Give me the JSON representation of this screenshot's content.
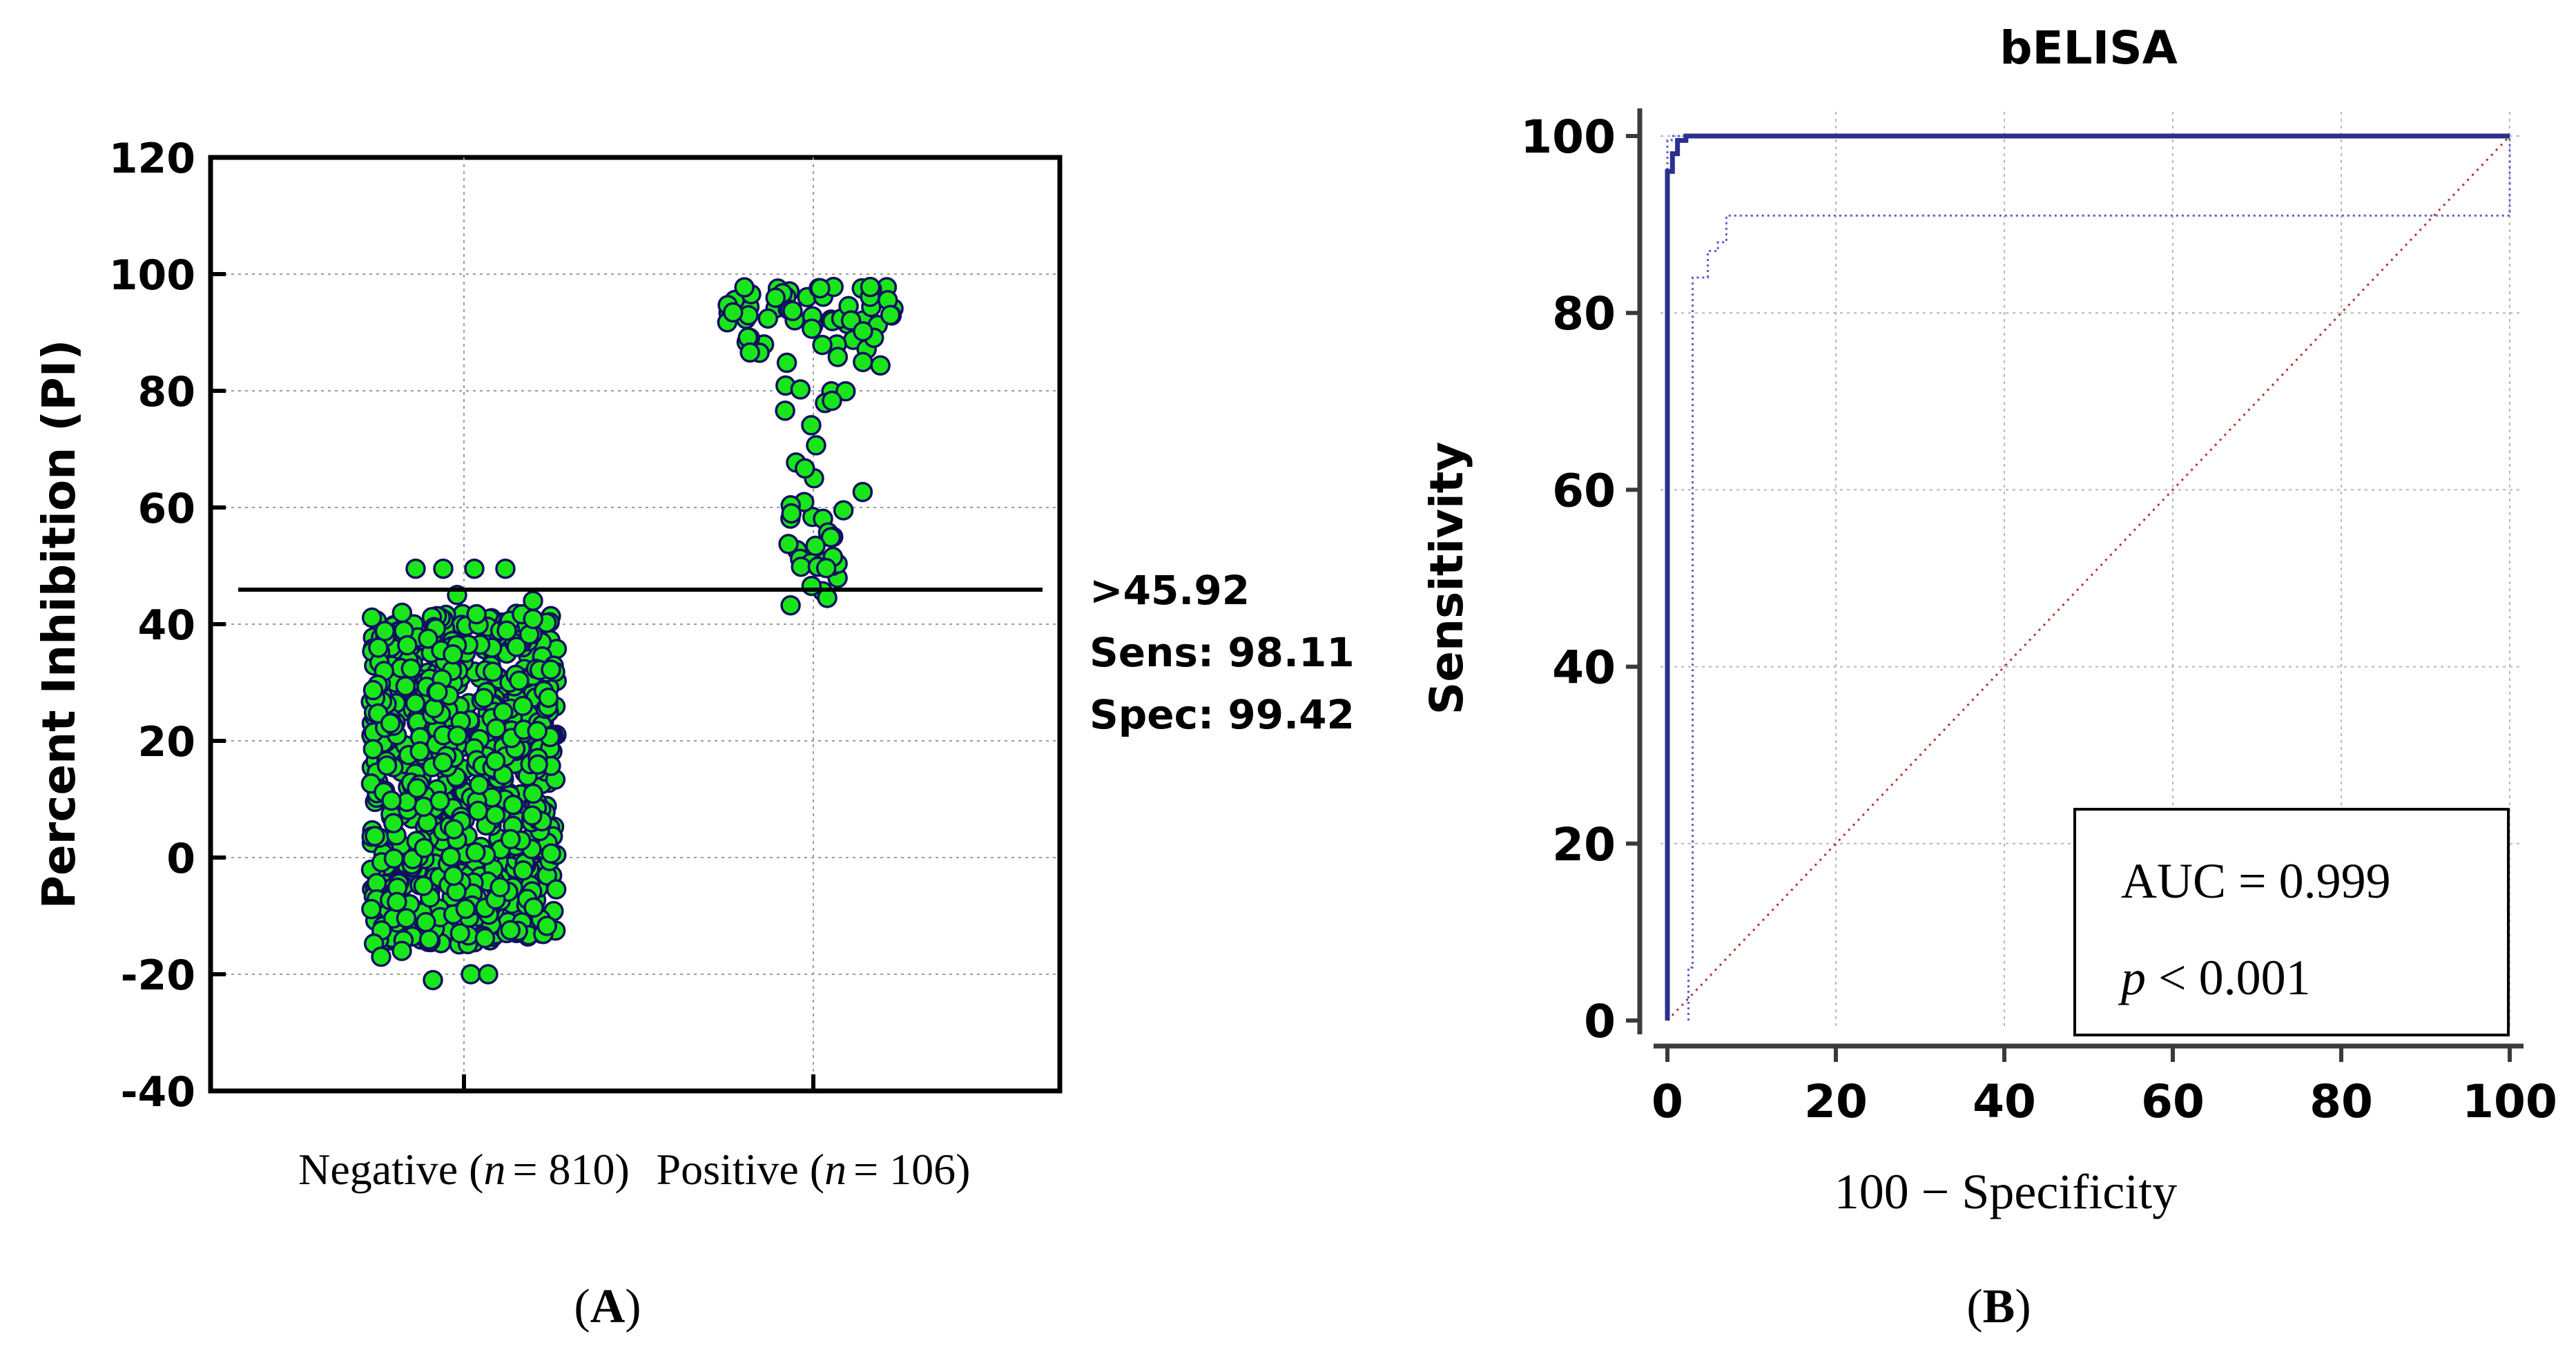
{
  "panel_a": {
    "label": "A",
    "chart_data": {
      "type": "scatter",
      "subtype": "dot-plot",
      "ylabel": "Percent Inhibition (PI)",
      "ylim": [
        -40,
        120
      ],
      "yticks": [
        -40,
        -20,
        0,
        20,
        40,
        60,
        80,
        100,
        120
      ],
      "groups": [
        {
          "name": "Negative",
          "n_label": "n",
          "n_value": "= 810)",
          "name_prefix": "Negative (",
          "n": 810,
          "min": -21,
          "max": 50,
          "dense_low": -15,
          "dense_high": 42
        },
        {
          "name": "Positive",
          "n_label": "n",
          "n_value": "= 106)",
          "name_prefix": "Positive (",
          "n": 106,
          "min": 43,
          "max": 100
        }
      ],
      "cutoff": 45.92,
      "annotation": [
        ">45.92",
        "Sens: 98.11",
        "Spec: 99.42"
      ],
      "marker_color": "#19e619",
      "marker_edge": "#101060"
    }
  },
  "panel_b": {
    "label": "B",
    "chart_data": {
      "type": "line",
      "title": "bELISA",
      "xlabel": "100 − Specificity",
      "ylabel": "Sensitivity",
      "xlim": [
        0,
        100
      ],
      "ylim": [
        0,
        100
      ],
      "xticks": [
        0,
        20,
        40,
        60,
        80,
        100
      ],
      "yticks": [
        0,
        20,
        40,
        60,
        80,
        100
      ],
      "series": [
        {
          "name": "ROC",
          "style": "solid",
          "color": "#2b2f8f",
          "x": [
            0,
            0,
            0.6,
            0.6,
            1.2,
            1.2,
            2.2,
            2.2,
            100
          ],
          "y": [
            0,
            96,
            96,
            98,
            98,
            99.5,
            99.5,
            100,
            100
          ]
        },
        {
          "name": "CI lower",
          "style": "dotted",
          "color": "#5a5ad0",
          "x": [
            2.5,
            2.5,
            3,
            3,
            4.8,
            4.8,
            6,
            6,
            7,
            7,
            100,
            100
          ],
          "y": [
            0,
            6,
            6,
            84,
            84,
            87,
            87,
            88,
            88,
            91,
            91,
            100
          ]
        },
        {
          "name": "CI upper",
          "style": "dotted",
          "color": "#5a5ad0",
          "x": [
            0,
            0,
            0.5,
            0.5,
            100
          ],
          "y": [
            0,
            99.5,
            99.5,
            100,
            100
          ]
        },
        {
          "name": "Reference",
          "style": "dotted",
          "color": "#b33030",
          "x": [
            0,
            100
          ],
          "y": [
            0,
            100
          ]
        }
      ],
      "legend": {
        "auc_text": "AUC = 0.999",
        "p_symbol": "p",
        "p_text": " < 0.001"
      }
    }
  }
}
